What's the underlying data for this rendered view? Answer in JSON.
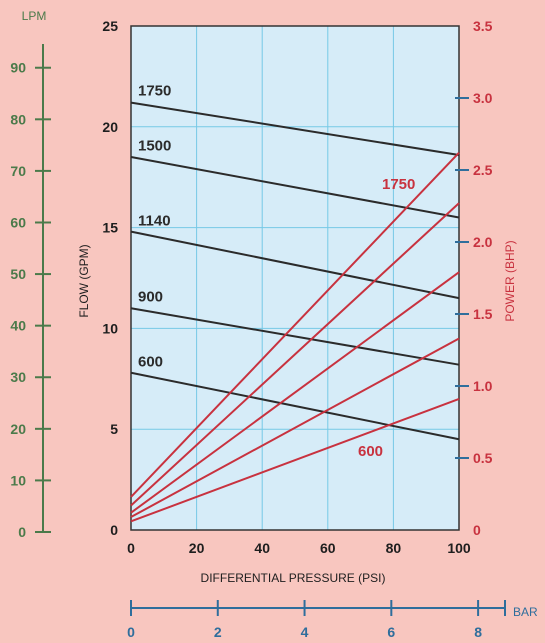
{
  "chart_data": {
    "type": "line",
    "colors": {
      "background": "#f8c6bf",
      "plot_bg": "#d6ecf8",
      "grid": "#76c9e6",
      "flow": "#2b2b2b",
      "power": "#c8323f",
      "lpm": "#4b7a4a",
      "bar": "#2f6e9c",
      "left_text": "#1e1e1e"
    },
    "x": {
      "label": "DIFFERENTIAL PRESSURE  (PSI)",
      "min": 0,
      "max": 100,
      "ticks": [
        0,
        20,
        40,
        60,
        80,
        100
      ]
    },
    "y_left": {
      "label": "FLOW  (GPM)",
      "min": 0,
      "max": 25,
      "ticks": [
        0,
        5,
        10,
        15,
        20,
        25
      ]
    },
    "y_right": {
      "label": "POWER  (BHP)",
      "min": 0,
      "max": 3.5,
      "ticks": [
        "0",
        "0.5",
        "1.0",
        "1.5",
        "2.0",
        "2.5",
        "3.0",
        "3.5"
      ]
    },
    "y_lpm": {
      "label": "LPM",
      "min": 0,
      "max": 94.6,
      "ticks": [
        0,
        10,
        20,
        30,
        40,
        50,
        60,
        70,
        80,
        90
      ]
    },
    "x_bar": {
      "label": "BAR",
      "min": 0,
      "max": 8.62,
      "ticks": [
        0,
        2,
        4,
        6,
        8
      ]
    },
    "flow_series": [
      {
        "name": "1750",
        "axis": "left",
        "x": [
          0,
          100
        ],
        "y": [
          21.2,
          18.6
        ]
      },
      {
        "name": "1500",
        "axis": "left",
        "x": [
          0,
          100
        ],
        "y": [
          18.5,
          15.5
        ]
      },
      {
        "name": "1140",
        "axis": "left",
        "x": [
          0,
          100
        ],
        "y": [
          14.8,
          11.5
        ]
      },
      {
        "name": "900",
        "axis": "left",
        "x": [
          0,
          100
        ],
        "y": [
          11.0,
          8.2
        ]
      },
      {
        "name": "600",
        "axis": "left",
        "x": [
          0,
          100
        ],
        "y": [
          7.8,
          4.5
        ]
      }
    ],
    "power_series": [
      {
        "name": "1750",
        "axis": "right",
        "x": [
          0,
          100
        ],
        "y": [
          0.23,
          2.62
        ]
      },
      {
        "name": "",
        "axis": "right",
        "x": [
          0,
          100
        ],
        "y": [
          0.17,
          2.27
        ]
      },
      {
        "name": "",
        "axis": "right",
        "x": [
          0,
          100
        ],
        "y": [
          0.12,
          1.79
        ]
      },
      {
        "name": "",
        "axis": "right",
        "x": [
          0,
          100
        ],
        "y": [
          0.09,
          1.33
        ]
      },
      {
        "name": "600",
        "axis": "right",
        "x": [
          0,
          100
        ],
        "y": [
          0.06,
          0.91
        ]
      }
    ]
  }
}
